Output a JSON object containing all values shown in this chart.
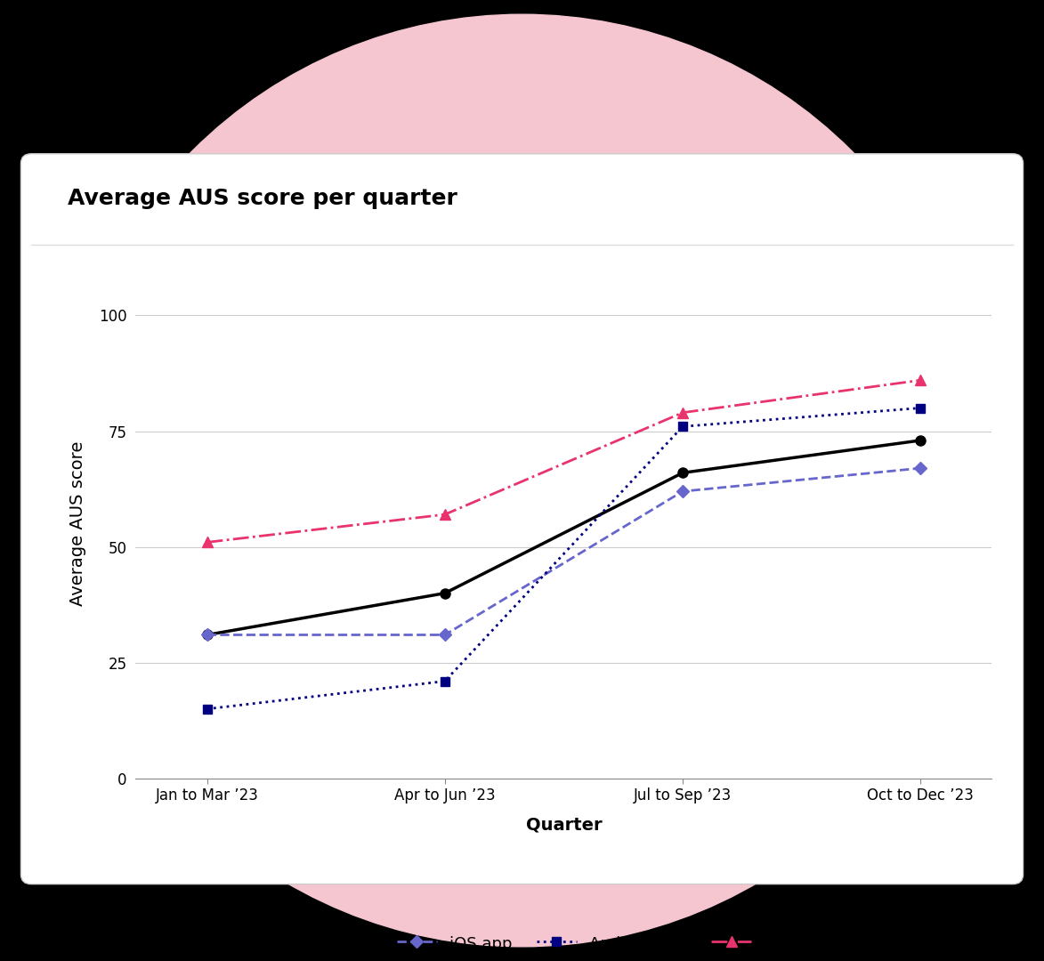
{
  "title": "Average AUS score per quarter",
  "xlabel": "Quarter",
  "ylabel": "Average AUS score",
  "quarters": [
    "Jan to Mar ’23",
    "Apr to Jun ’23",
    "Jul to Sep ’23",
    "Oct to Dec ’23"
  ],
  "overall": [
    31,
    40,
    66,
    73
  ],
  "ios_app": [
    31,
    31,
    62,
    67
  ],
  "android_app": [
    15,
    21,
    76,
    80
  ],
  "desktop_app": [
    51,
    57,
    79,
    86
  ],
  "overall_color": "#000000",
  "ios_color": "#6666cc",
  "android_color": "#000080",
  "desktop_color": "#e8336d",
  "ylim": [
    0,
    110
  ],
  "yticks": [
    0,
    25,
    50,
    75,
    100
  ],
  "background_circle_color": "#f5c6d0",
  "card_background": "#ffffff",
  "title_fontsize": 18,
  "axis_label_fontsize": 14,
  "tick_fontsize": 12,
  "legend_fontsize": 13
}
